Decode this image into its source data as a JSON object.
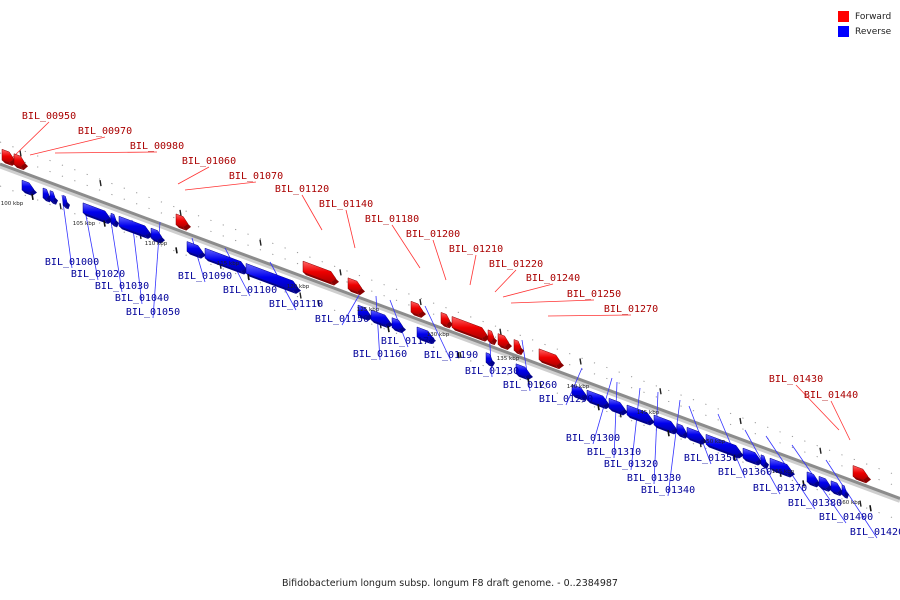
{
  "caption": "Bifidobacterium longum subsp. longum F8 draft genome. - 0..2384987",
  "legend": [
    {
      "label": "Forward",
      "color": "#ff0000"
    },
    {
      "label": "Reverse",
      "color": "#0000ff"
    }
  ],
  "colors": {
    "forward": "#ff0000",
    "reverse": "#0000ff",
    "backbone": "#999999",
    "forward_label": "#aa0000",
    "reverse_label": "#000099"
  },
  "ticks": [
    "100 kbp",
    "105 kbp",
    "110 kbp",
    "115 kbp",
    "120 kbp",
    "125 kbp",
    "130 kbp",
    "135 kbp",
    "140 kbp",
    "145 kbp",
    "150 kbp",
    "155 kbp",
    "160 kbp"
  ],
  "forward_genes": [
    "BIL_00950",
    "BIL_00970",
    "BIL_00980",
    "BIL_01060",
    "BIL_01070",
    "BIL_01120",
    "BIL_01140",
    "BIL_01180",
    "BIL_01200",
    "BIL_01210",
    "BIL_01220",
    "BIL_01240",
    "BIL_01250",
    "BIL_01270",
    "BIL_01430",
    "BIL_01440"
  ],
  "reverse_genes": [
    "BIL_01000",
    "BIL_01020",
    "BIL_01030",
    "BIL_01040",
    "BIL_01050",
    "BIL_01090",
    "BIL_01100",
    "BIL_01110",
    "BIL_01150",
    "BIL_01160",
    "BIL_01170",
    "BIL_01190",
    "BIL_01230",
    "BIL_01260",
    "BIL_01290",
    "BIL_01300",
    "BIL_01310",
    "BIL_01320",
    "BIL_01330",
    "BIL_01340",
    "BIL_01350",
    "BIL_01360",
    "BIL_01370",
    "BIL_01380",
    "BIL_01400",
    "BIL_01420"
  ]
}
